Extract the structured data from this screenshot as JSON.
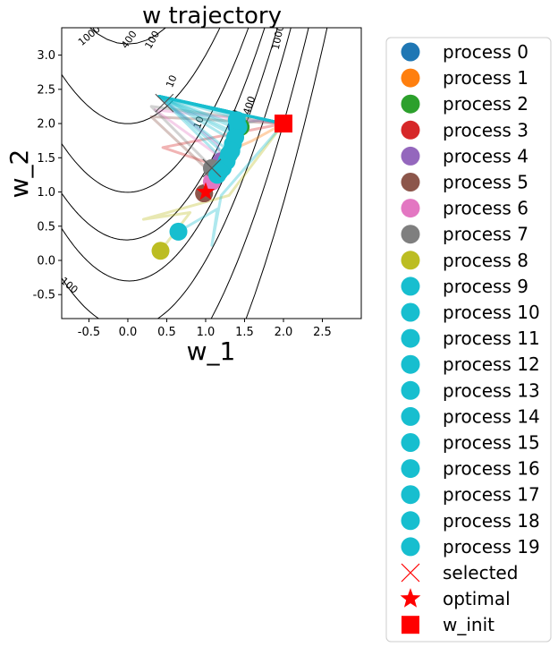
{
  "chart_data": {
    "type": "line",
    "title": "w trajectory",
    "xlabel": "w_1",
    "ylabel": "w_2",
    "xlim": [
      -0.85,
      3.0
    ],
    "ylim": [
      -0.85,
      3.4
    ],
    "xticks": [
      "-0.5",
      "0.0",
      "0.5",
      "1.0",
      "1.5",
      "2.0",
      "2.5"
    ],
    "xtick_values": [
      -0.5,
      0.0,
      0.5,
      1.0,
      1.5,
      2.0,
      2.5
    ],
    "yticks": [
      "-0.5",
      "0.0",
      "0.5",
      "1.0",
      "1.5",
      "2.0",
      "2.5",
      "3.0"
    ],
    "ytick_values": [
      -0.5,
      0.0,
      0.5,
      1.0,
      1.5,
      2.0,
      2.5,
      3.0
    ],
    "grid": false,
    "legend_position": "outside-right",
    "contour_levels": [
      10,
      100,
      400,
      1000
    ],
    "contour_labels": [
      "1000",
      "400",
      "100",
      "10",
      "10",
      "100",
      "400",
      "1000",
      "100"
    ],
    "series": [
      {
        "name": "process 0",
        "color": "#1f77b4",
        "x": [
          2.0,
          1.7,
          1.45,
          1.4
        ],
        "y": [
          2.0,
          2.05,
          2.0,
          1.95
        ]
      },
      {
        "name": "process 1",
        "color": "#ff7f0e",
        "x": [
          2.0,
          1.6,
          1.3,
          1.3
        ],
        "y": [
          2.0,
          1.75,
          1.6,
          1.55
        ]
      },
      {
        "name": "process 2",
        "color": "#2ca02c",
        "x": [
          2.0,
          1.6,
          1.4,
          1.45
        ],
        "y": [
          2.0,
          2.1,
          2.05,
          1.95
        ]
      },
      {
        "name": "process 3",
        "color": "#d62728",
        "x": [
          2.0,
          0.45,
          1.1,
          0.98
        ],
        "y": [
          2.0,
          1.65,
          1.4,
          0.98
        ]
      },
      {
        "name": "process 4",
        "color": "#9467bd",
        "x": [
          2.0,
          0.4,
          1.15,
          1.2
        ],
        "y": [
          2.0,
          2.4,
          1.7,
          1.45
        ]
      },
      {
        "name": "process 5",
        "color": "#8c564b",
        "x": [
          2.0,
          0.3,
          1.05,
          0.98
        ],
        "y": [
          2.0,
          2.1,
          1.3,
          0.98
        ]
      },
      {
        "name": "process 6",
        "color": "#e377c2",
        "x": [
          2.0,
          0.35,
          1.2,
          1.08
        ],
        "y": [
          2.0,
          2.2,
          1.5,
          1.15
        ]
      },
      {
        "name": "process 7",
        "color": "#7f7f7f",
        "x": [
          2.0,
          0.3,
          1.0,
          1.08
        ],
        "y": [
          2.0,
          2.25,
          1.45,
          1.35
        ]
      },
      {
        "name": "process 8",
        "color": "#bcbd22",
        "x": [
          2.0,
          1.3,
          0.2,
          0.8,
          0.42
        ],
        "y": [
          2.0,
          0.95,
          0.6,
          0.7,
          0.14
        ]
      },
      {
        "name": "process 9",
        "color": "#17becf",
        "x": [
          2.0,
          1.2,
          1.08,
          1.15,
          0.65
        ],
        "y": [
          2.0,
          0.95,
          0.22,
          0.75,
          0.42
        ]
      },
      {
        "name": "process 10",
        "color": "#17becf",
        "x": [
          2.0,
          0.4,
          1.2,
          1.15
        ],
        "y": [
          2.0,
          2.4,
          1.5,
          1.25
        ]
      },
      {
        "name": "process 11",
        "color": "#17becf",
        "x": [
          2.0,
          0.4,
          1.3,
          1.22
        ],
        "y": [
          2.0,
          2.4,
          1.6,
          1.35
        ]
      },
      {
        "name": "process 12",
        "color": "#17becf",
        "x": [
          2.0,
          0.4,
          1.4,
          1.3
        ],
        "y": [
          2.0,
          2.4,
          1.85,
          1.55
        ]
      },
      {
        "name": "process 13",
        "color": "#17becf",
        "x": [
          2.0,
          0.4,
          1.45,
          1.35
        ],
        "y": [
          2.0,
          2.4,
          1.95,
          1.7
        ]
      },
      {
        "name": "process 14",
        "color": "#17becf",
        "x": [
          2.0,
          0.4,
          1.5,
          1.42
        ],
        "y": [
          2.0,
          2.4,
          2.05,
          1.95
        ]
      },
      {
        "name": "process 15",
        "color": "#17becf",
        "x": [
          2.0,
          0.4,
          1.35,
          1.27
        ],
        "y": [
          2.0,
          2.4,
          1.75,
          1.45
        ]
      },
      {
        "name": "process 16",
        "color": "#17becf",
        "x": [
          2.0,
          0.4,
          1.25,
          1.18
        ],
        "y": [
          2.0,
          2.4,
          1.55,
          1.3
        ]
      },
      {
        "name": "process 17",
        "color": "#17becf",
        "x": [
          2.0,
          0.4,
          1.45,
          1.38
        ],
        "y": [
          2.0,
          2.4,
          1.9,
          1.8
        ]
      },
      {
        "name": "process 18",
        "color": "#17becf",
        "x": [
          2.0,
          0.4,
          1.4,
          1.33
        ],
        "y": [
          2.0,
          2.4,
          1.8,
          1.6
        ]
      },
      {
        "name": "process 19",
        "color": "#17becf",
        "x": [
          2.0,
          0.4,
          1.5,
          1.4
        ],
        "y": [
          2.0,
          2.4,
          2.1,
          2.05
        ]
      }
    ],
    "selected": {
      "name": "selected",
      "color": "#ff0000",
      "points": [
        [
          1.08,
          1.35
        ],
        [
          0.47,
          2.3
        ]
      ]
    },
    "optimal": {
      "name": "optimal",
      "color": "#ff0000",
      "x": 1.0,
      "y": 1.0
    },
    "w_init": {
      "name": "w_init",
      "color": "#ff0000",
      "x": 2.0,
      "y": 2.0
    }
  }
}
